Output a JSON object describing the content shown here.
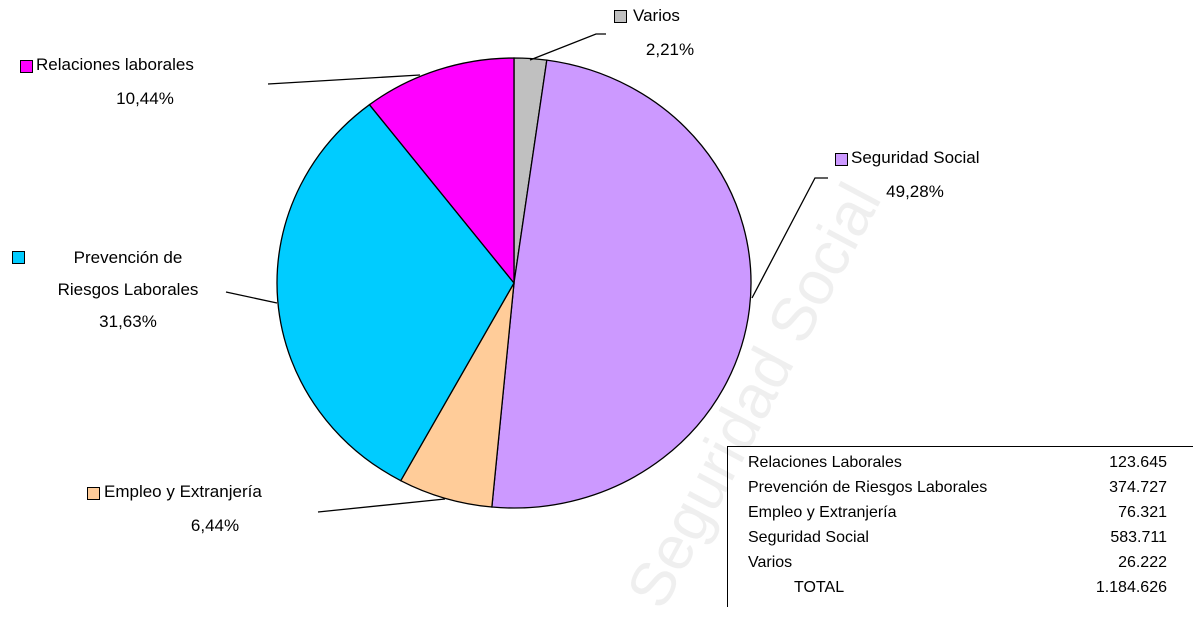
{
  "chart_data": {
    "type": "pie",
    "categories": [
      "Varios",
      "Seguridad Social",
      "Empleo y Extranjería",
      "Prevención de Riesgos Laborales",
      "Relaciones laborales"
    ],
    "values": [
      2.21,
      49.28,
      6.44,
      31.63,
      10.44
    ],
    "value_labels": [
      "2,21%",
      "49,28%",
      "6,44%",
      "31,63%",
      "10,44%"
    ],
    "colors": [
      "#c0c0c0",
      "#cc99ff",
      "#ffcc99",
      "#00ccff",
      "#ff00ff"
    ]
  },
  "table": {
    "rows": [
      [
        "Relaciones Laborales",
        "123.645"
      ],
      [
        "Prevención  de Riesgos Laborales",
        "374.727"
      ],
      [
        "Empleo y Extranjería",
        "76.321"
      ],
      [
        "Seguridad Social",
        "583.711"
      ],
      [
        "Varios",
        "26.222"
      ],
      [
        "TOTAL",
        "1.184.626"
      ]
    ]
  },
  "watermark": "Seguridad Social"
}
